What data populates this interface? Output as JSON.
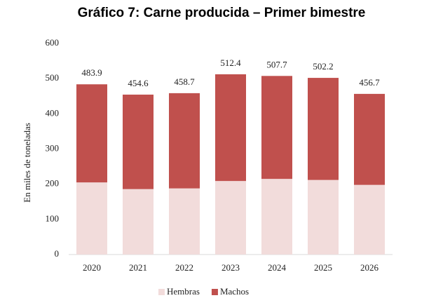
{
  "chart_data": {
    "type": "bar",
    "stacked": true,
    "title": "Gráfico 7: Carne producida – Primer bimestre",
    "y_label": "En miles de toneladas",
    "categories": [
      "2020",
      "2021",
      "2022",
      "2023",
      "2024",
      "2025",
      "2026"
    ],
    "series": [
      {
        "name": "Hembras",
        "color": "#f2dcdb",
        "values": [
          205,
          186,
          188,
          209,
          215,
          212,
          198
        ]
      },
      {
        "name": "Machos",
        "color": "#c0504d",
        "values": [
          278.9,
          268.6,
          270.7,
          303.4,
          292.7,
          290.2,
          258.7
        ]
      }
    ],
    "totals": [
      483.9,
      454.6,
      458.7,
      512.4,
      507.7,
      502.2,
      456.7
    ],
    "ylim": [
      0,
      600
    ],
    "yticks": [
      0,
      100,
      200,
      300,
      400,
      500,
      600
    ],
    "grid": false,
    "legend": "bottom"
  }
}
